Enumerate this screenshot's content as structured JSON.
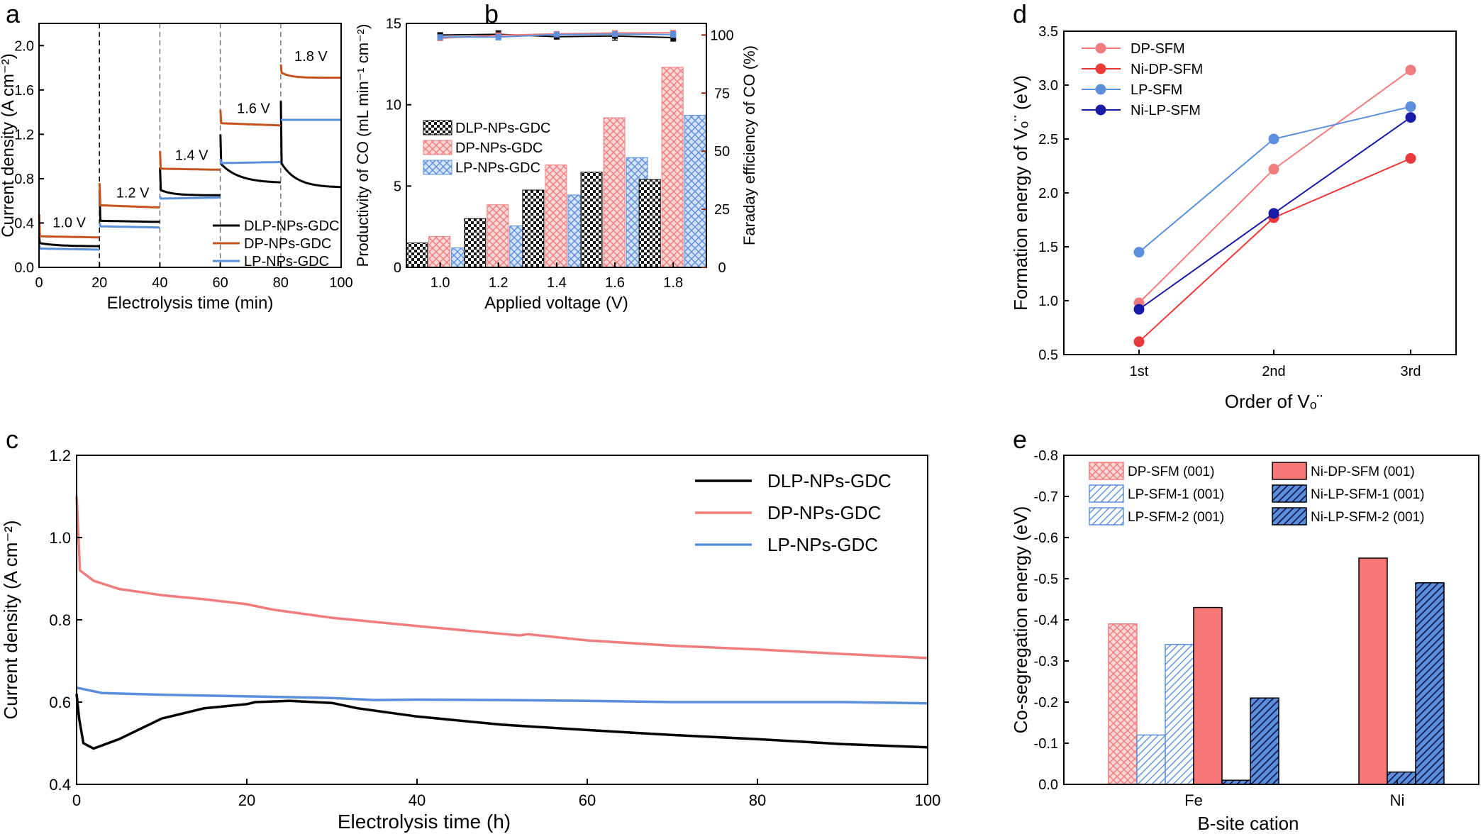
{
  "panels": {
    "a": "a",
    "b": "b",
    "c": "c",
    "d": "d",
    "e": "e"
  },
  "colors": {
    "dlp": "#000000",
    "dp_a": "#c4541e",
    "dp": "#f07d7d",
    "lp": "#5b8fdc",
    "ni_dp": "#e83a3a",
    "ni_lp": "#1a1aa8",
    "dp_bar": "#f4a0a0",
    "lp_bar": "#8cb4ec",
    "red_axis": "#8b2a10"
  },
  "chart_data": [
    {
      "panel": "a",
      "type": "line",
      "xlabel": "Electrolysis time (min)",
      "ylabel": "Current density (A cm⁻²)",
      "xlim": [
        0,
        100
      ],
      "ylim": [
        0,
        2.2
      ],
      "xticks": [
        "0",
        "20",
        "40",
        "60",
        "80",
        "100"
      ],
      "yticks": [
        "0.0",
        "0.4",
        "0.8",
        "1.2",
        "1.6",
        "2.0"
      ],
      "vlines": [
        20,
        40,
        60,
        80
      ],
      "annotations": [
        {
          "text": "1.0 V",
          "x": 10,
          "y": 0.36
        },
        {
          "text": "1.2 V",
          "x": 31,
          "y": 0.63
        },
        {
          "text": "1.4 V",
          "x": 50.5,
          "y": 0.97
        },
        {
          "text": "1.6 V",
          "x": 71,
          "y": 1.39
        },
        {
          "text": "1.8 V",
          "x": 90,
          "y": 1.86
        }
      ],
      "series": [
        {
          "name": "DLP-NPs-GDC",
          "color": "#000000",
          "segments": [
            {
              "t0": 0,
              "t1": 20,
              "spike": 0.27,
              "start": 0.22,
              "end": 0.19,
              "tau": 6
            },
            {
              "t0": 20,
              "t1": 40,
              "spike": 0.7,
              "start": 0.42,
              "end": 0.41,
              "tau": 1
            },
            {
              "t0": 40,
              "t1": 60,
              "spike": 0.9,
              "start": 0.7,
              "end": 0.65,
              "tau": 4
            },
            {
              "t0": 60,
              "t1": 80,
              "spike": 1.2,
              "start": 0.94,
              "end": 0.76,
              "tau": 6
            },
            {
              "t0": 80,
              "t1": 100,
              "spike": 1.5,
              "start": 0.95,
              "end": 0.72,
              "tau": 5
            }
          ]
        },
        {
          "name": "DP-NPs-GDC",
          "color": "#c4541e",
          "segments": [
            {
              "t0": 0,
              "t1": 20,
              "spike": 0.48,
              "start": 0.28,
              "end": 0.27,
              "tau": 1
            },
            {
              "t0": 20,
              "t1": 40,
              "spike": 0.76,
              "start": 0.56,
              "end": 0.54,
              "tau": 1
            },
            {
              "t0": 40,
              "t1": 60,
              "spike": 1.05,
              "start": 0.89,
              "end": 0.88,
              "tau": 1
            },
            {
              "t0": 60,
              "t1": 80,
              "spike": 1.42,
              "start": 1.3,
              "end": 1.28,
              "tau": 1
            },
            {
              "t0": 80,
              "t1": 100,
              "spike": 1.83,
              "start": 1.76,
              "end": 1.71,
              "tau": 3
            }
          ]
        },
        {
          "name": "LP-NPs-GDC",
          "color": "#5b8fdc",
          "segments": [
            {
              "t0": 0,
              "t1": 20,
              "spike": 0.2,
              "start": 0.17,
              "end": 0.16,
              "tau": 1
            },
            {
              "t0": 20,
              "t1": 40,
              "spike": 0.4,
              "start": 0.37,
              "end": 0.36,
              "tau": 1
            },
            {
              "t0": 40,
              "t1": 60,
              "spike": 0.64,
              "start": 0.62,
              "end": 0.63,
              "tau": 1
            },
            {
              "t0": 60,
              "t1": 80,
              "spike": 0.98,
              "start": 0.94,
              "end": 0.95,
              "tau": 1
            },
            {
              "t0": 80,
              "t1": 100,
              "spike": 1.33,
              "start": 1.33,
              "end": 1.33,
              "tau": 1
            }
          ]
        }
      ]
    },
    {
      "panel": "b",
      "type": "bar",
      "xlabel": "Applied voltage (V)",
      "ylabel": "Productivity of CO (mL min⁻¹ cm⁻²)",
      "y2label": "Faraday efficiency of CO (%)",
      "categories": [
        "1.0",
        "1.2",
        "1.4",
        "1.6",
        "1.8"
      ],
      "ylim": [
        0,
        15
      ],
      "yticks": [
        "0",
        "5",
        "10",
        "15"
      ],
      "y2lim": [
        0,
        105
      ],
      "y2ticks": [
        "0",
        "25",
        "50",
        "75",
        "100"
      ],
      "series": [
        {
          "name": "DLP-NPs-GDC",
          "color": "#000000",
          "values": [
            1.5,
            3.0,
            4.75,
            5.85,
            5.4
          ],
          "fe": [
            100.0,
            100.3,
            99.3,
            99.6,
            98.9
          ],
          "fe_err": [
            0.5,
            1.5,
            1.0,
            1.8,
            1.5
          ]
        },
        {
          "name": "DP-NPs-GDC",
          "color": "#f4a0a0",
          "values": [
            1.9,
            3.85,
            6.3,
            9.2,
            12.3
          ],
          "fe": [
            98.6,
            99.9,
            100.5,
            100.9,
            101.0
          ],
          "fe_err": [
            0.4,
            0.6,
            0.6,
            0.5,
            0.6
          ]
        },
        {
          "name": "LP-NPs-GDC",
          "color": "#8cb4ec",
          "values": [
            1.2,
            2.55,
            4.45,
            6.75,
            9.35
          ],
          "fe": [
            99.1,
            99.1,
            100.2,
            100.4,
            100.2
          ],
          "fe_err": [
            0.4,
            1.2,
            0.8,
            0.8,
            1.2
          ]
        }
      ]
    },
    {
      "panel": "c",
      "type": "line",
      "xlabel": "Electrolysis time (h)",
      "ylabel": "Current density (A cm⁻²)",
      "xlim": [
        0,
        100
      ],
      "ylim": [
        0.4,
        1.2
      ],
      "xticks": [
        "0",
        "20",
        "40",
        "60",
        "80",
        "100"
      ],
      "yticks": [
        "0.4",
        "0.6",
        "0.8",
        "1.0",
        "1.2"
      ],
      "series": [
        {
          "name": "DLP-NPs-GDC",
          "color": "#000000",
          "points": [
            [
              0,
              0.62
            ],
            [
              0.3,
              0.56
            ],
            [
              0.8,
              0.5
            ],
            [
              2,
              0.487
            ],
            [
              5,
              0.51
            ],
            [
              10,
              0.56
            ],
            [
              15,
              0.585
            ],
            [
              20,
              0.595
            ],
            [
              21,
              0.6
            ],
            [
              25,
              0.603
            ],
            [
              30,
              0.598
            ],
            [
              33,
              0.585
            ],
            [
              40,
              0.565
            ],
            [
              50,
              0.545
            ],
            [
              60,
              0.532
            ],
            [
              70,
              0.52
            ],
            [
              80,
              0.51
            ],
            [
              90,
              0.498
            ],
            [
              100,
              0.49
            ]
          ]
        },
        {
          "name": "DP-NPs-GDC",
          "color": "#f07d7d",
          "points": [
            [
              0,
              1.1
            ],
            [
              0.4,
              0.92
            ],
            [
              2,
              0.895
            ],
            [
              5,
              0.875
            ],
            [
              10,
              0.86
            ],
            [
              15,
              0.85
            ],
            [
              20,
              0.838
            ],
            [
              23,
              0.825
            ],
            [
              30,
              0.805
            ],
            [
              40,
              0.785
            ],
            [
              52,
              0.762
            ],
            [
              53,
              0.765
            ],
            [
              60,
              0.75
            ],
            [
              70,
              0.737
            ],
            [
              80,
              0.728
            ],
            [
              90,
              0.717
            ],
            [
              100,
              0.707
            ]
          ]
        },
        {
          "name": "LP-NPs-GDC",
          "color": "#5b8fdc",
          "points": [
            [
              0,
              0.635
            ],
            [
              3,
              0.622
            ],
            [
              10,
              0.618
            ],
            [
              20,
              0.614
            ],
            [
              30,
              0.61
            ],
            [
              35,
              0.605
            ],
            [
              40,
              0.606
            ],
            [
              50,
              0.605
            ],
            [
              60,
              0.603
            ],
            [
              70,
              0.6
            ],
            [
              80,
              0.6
            ],
            [
              90,
              0.6
            ],
            [
              100,
              0.597
            ]
          ]
        }
      ]
    },
    {
      "panel": "d",
      "type": "line",
      "xlabel": "Order of Vₒ¨",
      "ylabel": "Formation energy of Vₒ¨ (eV)",
      "categories": [
        "1st",
        "2nd",
        "3rd"
      ],
      "ylim": [
        0.5,
        3.5
      ],
      "yticks": [
        "0.5",
        "1.0",
        "1.5",
        "2.0",
        "2.5",
        "3.0",
        "3.5"
      ],
      "series": [
        {
          "name": "DP-SFM",
          "color": "#f07d7d",
          "values": [
            0.98,
            2.22,
            3.14
          ]
        },
        {
          "name": "Ni-DP-SFM",
          "color": "#e83a3a",
          "values": [
            0.62,
            1.77,
            2.32
          ]
        },
        {
          "name": "LP-SFM",
          "color": "#5b8fdc",
          "values": [
            1.45,
            2.5,
            2.8
          ]
        },
        {
          "name": "Ni-LP-SFM",
          "color": "#1a1aa8",
          "values": [
            0.92,
            1.81,
            2.7
          ]
        }
      ]
    },
    {
      "panel": "e",
      "type": "bar",
      "xlabel": "B-site cation",
      "ylabel": "Co-segregation energy (eV)",
      "categories": [
        "Fe",
        "Ni"
      ],
      "ylim": [
        0,
        -0.8
      ],
      "yticks": [
        "0.0",
        "-0.1",
        "-0.2",
        "-0.3",
        "-0.4",
        "-0.5",
        "-0.6",
        "-0.7",
        "-0.8"
      ],
      "series": [
        {
          "name": "DP-SFM (001)",
          "color": "#f07d7d",
          "pattern": "cross",
          "values": [
            -0.39,
            null
          ]
        },
        {
          "name": "LP-SFM-1 (001)",
          "color": "#5b8fdc",
          "pattern": "diag",
          "values": [
            -0.12,
            null
          ]
        },
        {
          "name": "LP-SFM-2 (001)",
          "color": "#5b8fdc",
          "pattern": "diag",
          "values": [
            -0.34,
            null
          ]
        },
        {
          "name": "Ni-DP-SFM (001)",
          "color": "#f87878",
          "pattern": "solid",
          "values": [
            -0.43,
            -0.55
          ]
        },
        {
          "name": "Ni-LP-SFM-1 (001)",
          "color": "#5b8fdc",
          "pattern": "diag-dark",
          "values": [
            -0.01,
            -0.03
          ]
        },
        {
          "name": "Ni-LP-SFM-2 (001)",
          "color": "#3d6fd6",
          "pattern": "diag-dark",
          "values": [
            -0.21,
            -0.49
          ]
        }
      ]
    }
  ]
}
